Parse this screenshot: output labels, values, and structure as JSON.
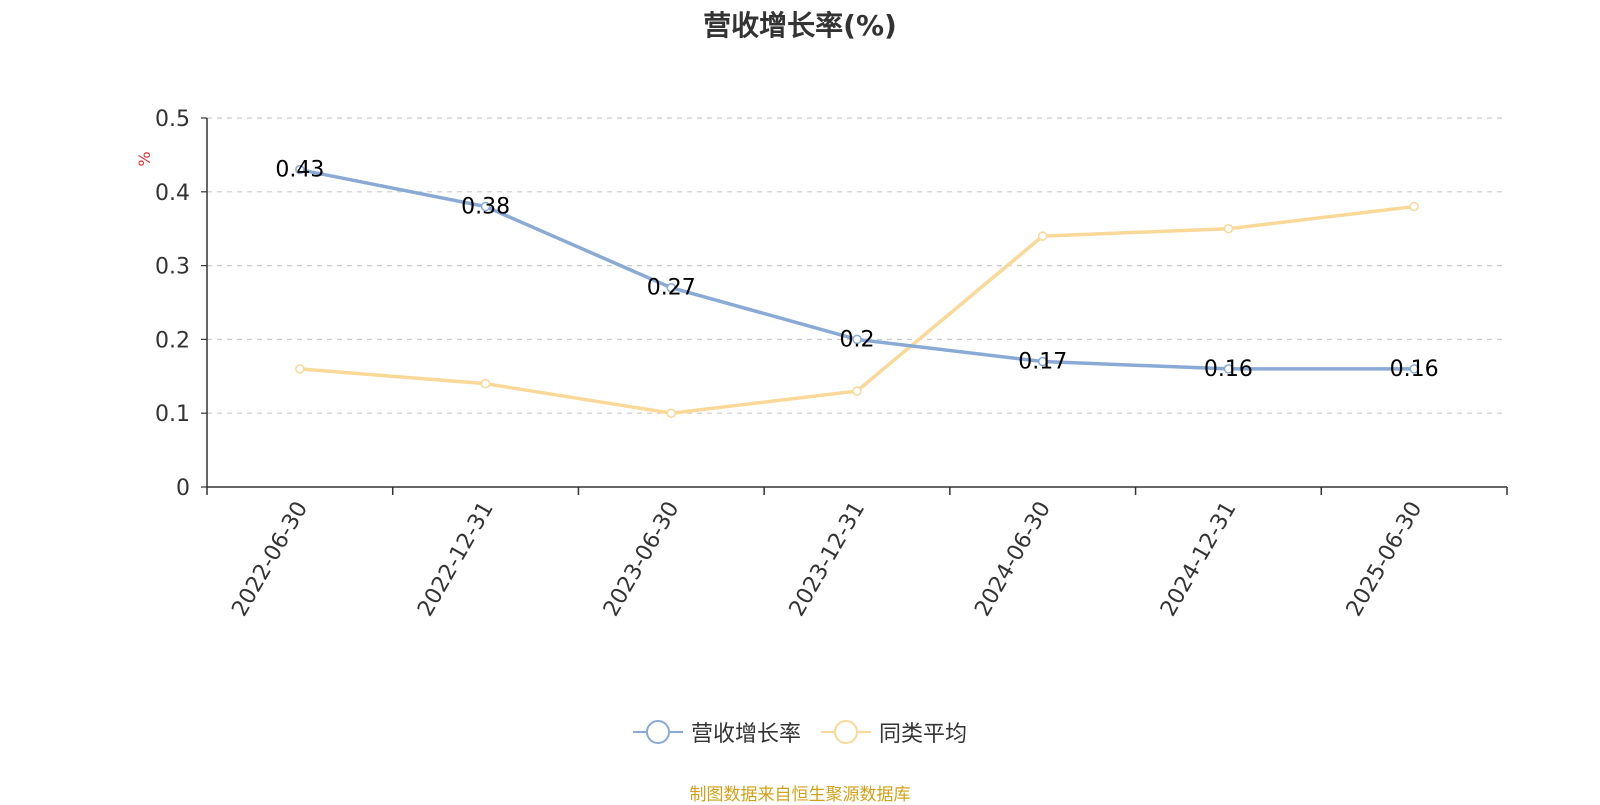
{
  "chart_data": {
    "type": "line",
    "title": "营收增长率(%)",
    "ylabel": "%",
    "xlabel": "",
    "categories": [
      "2022-06-30",
      "2022-12-31",
      "2023-06-30",
      "2023-12-31",
      "2024-06-30",
      "2024-12-31",
      "2025-06-30"
    ],
    "ylim": [
      0,
      0.5
    ],
    "yticks": [
      0,
      0.1,
      0.2,
      0.3,
      0.4,
      0.5
    ],
    "ytick_labels": [
      "0",
      "0.1",
      "0.2",
      "0.3",
      "0.4",
      "0.5"
    ],
    "grid": true,
    "legend_position": "bottom",
    "series": [
      {
        "name": "营收增长率",
        "color": "#8aaad6",
        "values": [
          0.43,
          0.38,
          0.27,
          0.2,
          0.17,
          0.16,
          0.16
        ],
        "data_labels": [
          "0.43",
          "0.38",
          "0.27",
          "0.2",
          "0.17",
          "0.16",
          "0.16"
        ]
      },
      {
        "name": "同类平均",
        "color": "#f9d898",
        "values": [
          0.16,
          0.14,
          0.1,
          0.13,
          0.34,
          0.35,
          0.38
        ]
      }
    ]
  },
  "source_note": "制图数据来自恒生聚源数据库",
  "colors": {
    "title": "#333333",
    "axis": "#333333",
    "grid": "#cccccc",
    "ylabel": "#e03030",
    "source_note": "#d4a017"
  }
}
